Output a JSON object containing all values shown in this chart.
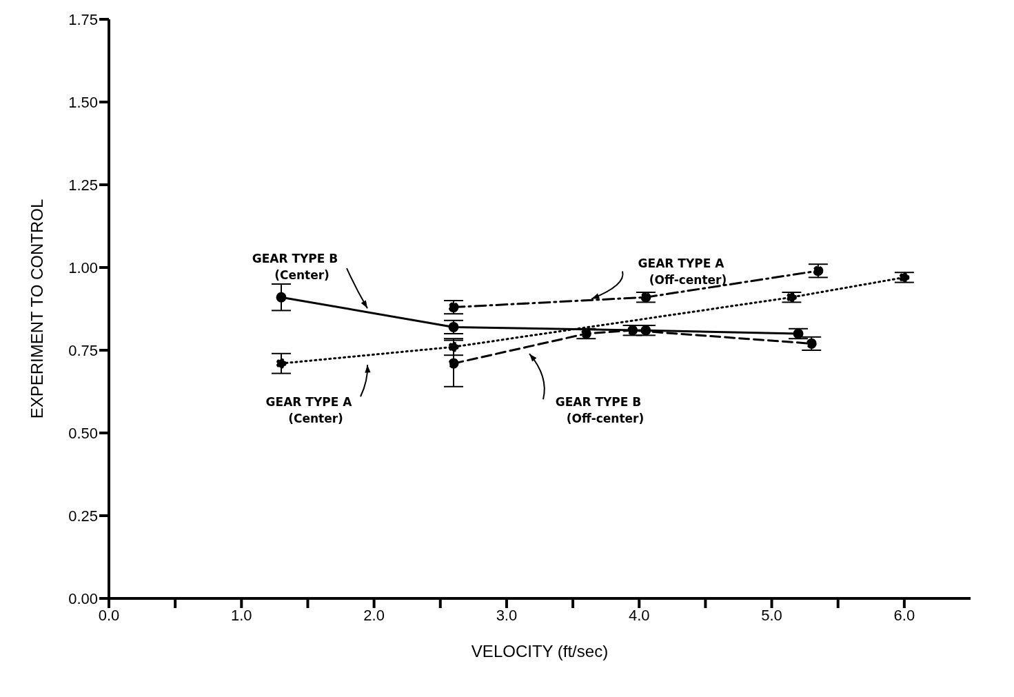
{
  "chart_data": {
    "type": "line",
    "xlabel": "VELOCITY (ft/sec)",
    "ylabel": "EXPERIMENT TO CONTROL",
    "xlim": [
      0,
      6.5
    ],
    "xticks": [
      {
        "value": 0,
        "label": "0.0"
      },
      {
        "value": 0.5,
        "label": null
      },
      {
        "value": 1,
        "label": "1.0"
      },
      {
        "value": 1.5,
        "label": null
      },
      {
        "value": 2,
        "label": "2.0"
      },
      {
        "value": 2.5,
        "label": null
      },
      {
        "value": 3,
        "label": "3.0"
      },
      {
        "value": 3.5,
        "label": null
      },
      {
        "value": 4,
        "label": "4.0"
      },
      {
        "value": 4.5,
        "label": null
      },
      {
        "value": 5,
        "label": "5.0"
      },
      {
        "value": 5.5,
        "label": null
      },
      {
        "value": 6,
        "label": "6.0"
      }
    ],
    "ylim": [
      0,
      1.75
    ],
    "yticks": [
      {
        "value": 0,
        "label": "0.00"
      },
      {
        "value": 0.25,
        "label": "0.25"
      },
      {
        "value": 0.5,
        "label": "0.50"
      },
      {
        "value": 0.75,
        "label": "0.75"
      },
      {
        "value": 1,
        "label": "1.00"
      },
      {
        "value": 1.25,
        "label": "1.25"
      },
      {
        "value": 1.5,
        "label": "1.50"
      },
      {
        "value": 1.75,
        "label": "1.75"
      }
    ],
    "grid": false,
    "legend": false,
    "marker": "circle",
    "series": [
      {
        "name": "GEAR TYPE A (Center)",
        "color": "#000000",
        "line_style": "dotted",
        "x": [
          1.3,
          2.6,
          5.15,
          6.0
        ],
        "values": [
          0.71,
          0.76,
          0.91,
          0.97
        ],
        "errors": [
          0.03,
          0.025,
          0.015,
          0.015
        ]
      },
      {
        "name": "GEAR TYPE B (Center)",
        "color": "#000000",
        "line_style": "solid",
        "x": [
          1.3,
          2.6,
          4.05,
          5.2
        ],
        "values": [
          0.91,
          0.82,
          0.81,
          0.8
        ],
        "errors": [
          0.04,
          0.02,
          0.015,
          0.015
        ]
      },
      {
        "name": "GEAR TYPE A (Off-center)",
        "color": "#000000",
        "line_style": "dashdot",
        "x": [
          2.6,
          4.05,
          5.35
        ],
        "values": [
          0.88,
          0.91,
          0.99
        ],
        "errors": [
          0.02,
          0.015,
          0.02
        ]
      },
      {
        "name": "GEAR TYPE B (Off-center)",
        "color": "#000000",
        "line_style": "dashed",
        "x": [
          2.6,
          3.6,
          3.95,
          5.3
        ],
        "values": [
          0.71,
          0.8,
          0.81,
          0.77
        ],
        "errors": [
          0.07,
          0.015,
          0.015,
          0.02
        ]
      }
    ]
  }
}
